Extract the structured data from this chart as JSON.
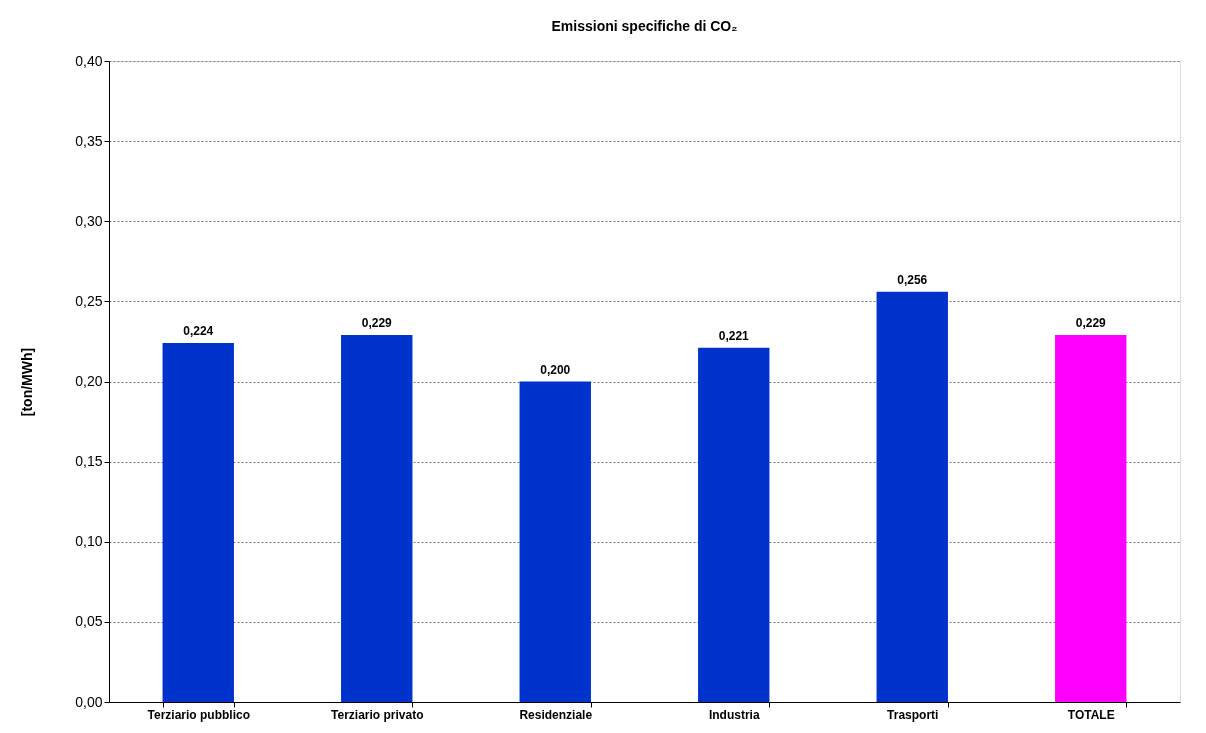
{
  "chart_data": {
    "type": "bar",
    "title": "Emissioni specifiche di CO₂",
    "ylabel": "[ton/MWh]",
    "categories": [
      "Terziario pubblico",
      "Terziario privato",
      "Residenziale",
      "Industria",
      "Trasporti",
      "TOTALE"
    ],
    "values": [
      0.224,
      0.229,
      0.2,
      0.221,
      0.256,
      0.229
    ],
    "colors": [
      "#0033cc",
      "#0033cc",
      "#0033cc",
      "#0033cc",
      "#0033cc",
      "#ff00ff"
    ],
    "value_labels": [
      "0,224",
      "0,229",
      "0,200",
      "0,221",
      "0,256",
      "0,229"
    ],
    "ylim": [
      0,
      0.4
    ],
    "yticks": [
      {
        "value": 0,
        "label": "0,00"
      },
      {
        "value": 0.05,
        "label": "0,05"
      },
      {
        "value": 0.1,
        "label": "0,10"
      },
      {
        "value": 0.15,
        "label": "0,15"
      },
      {
        "value": 0.2,
        "label": "0,20"
      },
      {
        "value": 0.25,
        "label": "0,25"
      },
      {
        "value": 0.3,
        "label": "0,30"
      },
      {
        "value": 0.35,
        "label": "0,35"
      },
      {
        "value": 0.4,
        "label": "0,40"
      }
    ],
    "grid": "y",
    "legend": false
  }
}
